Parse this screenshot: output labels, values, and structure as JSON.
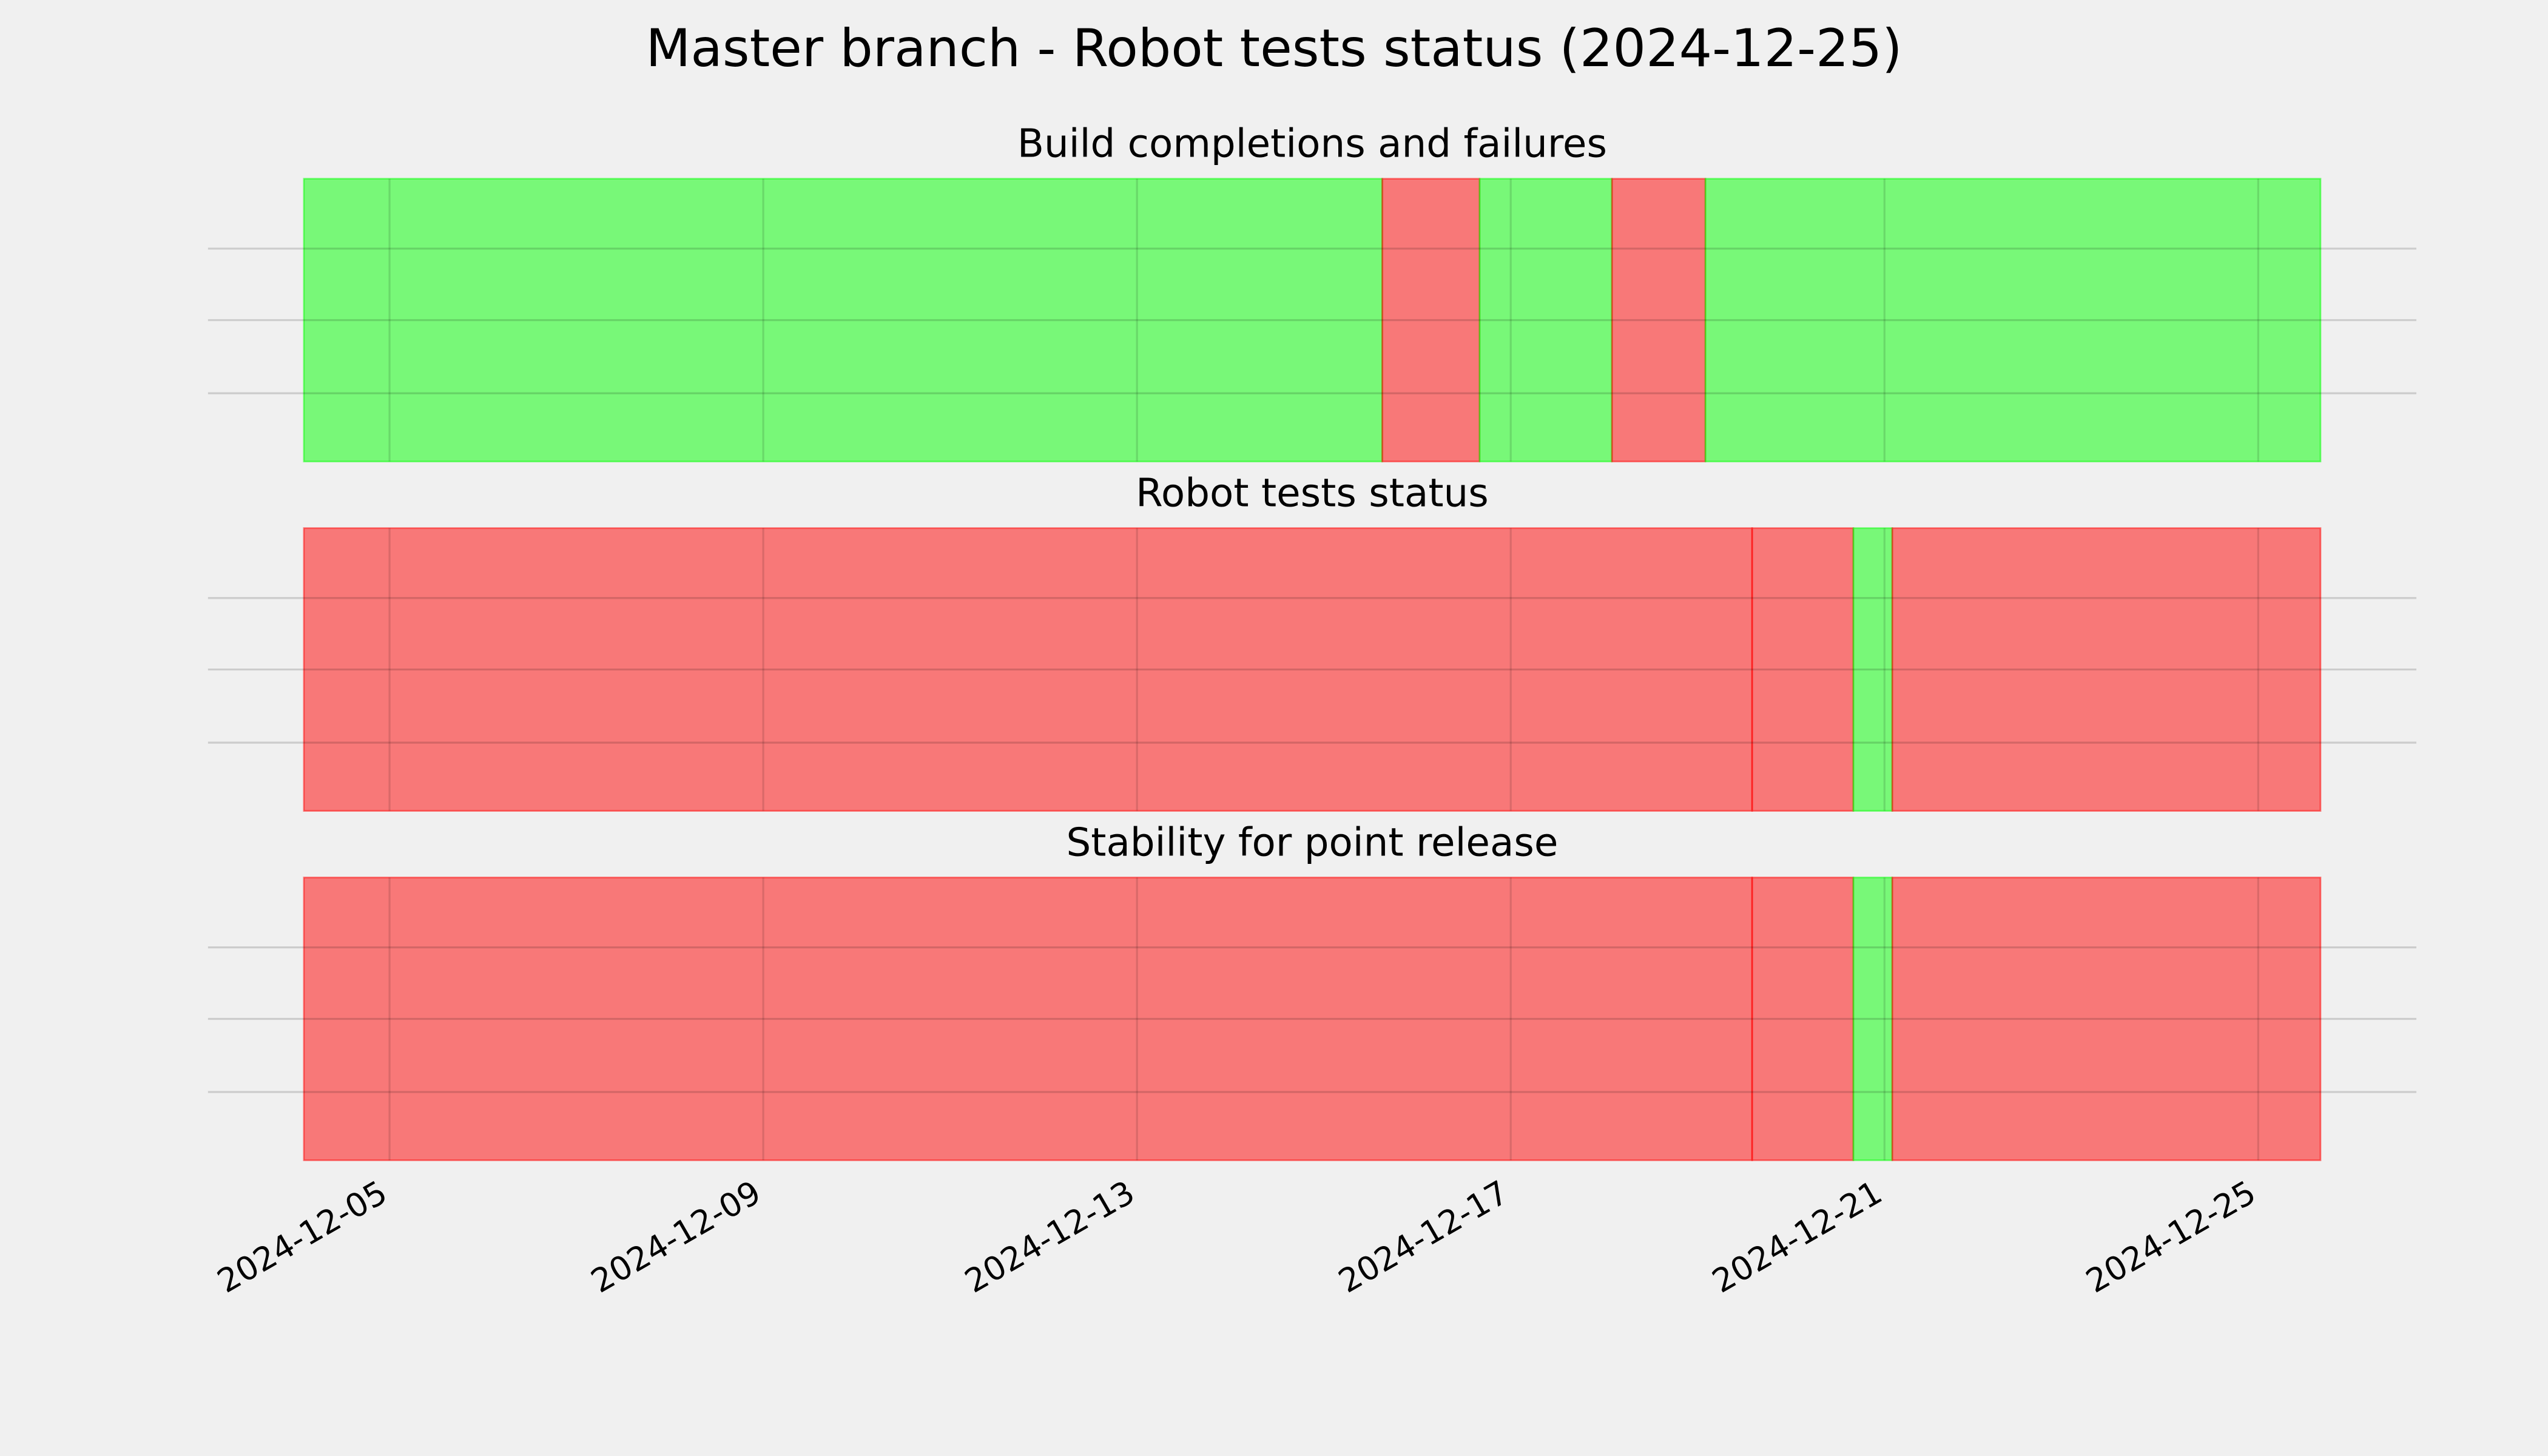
{
  "title": "Master branch - Robot tests status (2024-12-25)",
  "chart_data": [
    {
      "type": "timeline",
      "title": "Build completions and failures",
      "xlim": [
        "2024-12-04T02:00",
        "2024-12-25T16:00"
      ],
      "xticks": [
        "2024-12-05",
        "2024-12-09",
        "2024-12-13",
        "2024-12-17",
        "2024-12-21",
        "2024-12-25"
      ],
      "grid": true,
      "spans": {
        "starts": [
          "2024-12-04T02:00",
          "2024-12-15T15:00",
          "2024-12-16T16:00",
          "2024-12-18T02:00",
          "2024-12-19T02:00"
        ],
        "ends": [
          "2024-12-15T15:00",
          "2024-12-16T16:00",
          "2024-12-18T02:00",
          "2024-12-19T02:00",
          "2024-12-25T16:00"
        ],
        "colors": [
          "#00ff00",
          "#ff0000",
          "#00ff00",
          "#ff0000",
          "#00ff00"
        ]
      }
    },
    {
      "type": "timeline",
      "title": "Robot tests status",
      "xlim": [
        "2024-12-04T02:00",
        "2024-12-25T16:00"
      ],
      "xticks": [
        "2024-12-05",
        "2024-12-09",
        "2024-12-13",
        "2024-12-17",
        "2024-12-21",
        "2024-12-25"
      ],
      "grid": true,
      "spans": {
        "starts": [
          "2024-12-04T02:00",
          "2024-12-19T14:00",
          "2024-12-20T16:00",
          "2024-12-21T02:00"
        ],
        "ends": [
          "2024-12-19T14:00",
          "2024-12-20T16:00",
          "2024-12-21T02:00",
          "2024-12-25T16:00"
        ],
        "colors": [
          "#ff0000",
          "#ff0000",
          "#00ff00",
          "#ff0000"
        ]
      }
    },
    {
      "type": "timeline",
      "title": "Stability for point release",
      "xlim": [
        "2024-12-04T02:00",
        "2024-12-25T16:00"
      ],
      "xticks": [
        "2024-12-05",
        "2024-12-09",
        "2024-12-13",
        "2024-12-17",
        "2024-12-21",
        "2024-12-25"
      ],
      "grid": true,
      "spans": {
        "starts": [
          "2024-12-04T02:00",
          "2024-12-19T14:00",
          "2024-12-20T16:00",
          "2024-12-21T02:00"
        ],
        "ends": [
          "2024-12-19T14:00",
          "2024-12-20T16:00",
          "2024-12-21T02:00",
          "2024-12-25T16:00"
        ],
        "colors": [
          "#ff0000",
          "#ff0000",
          "#00ff00",
          "#ff0000"
        ]
      }
    }
  ]
}
